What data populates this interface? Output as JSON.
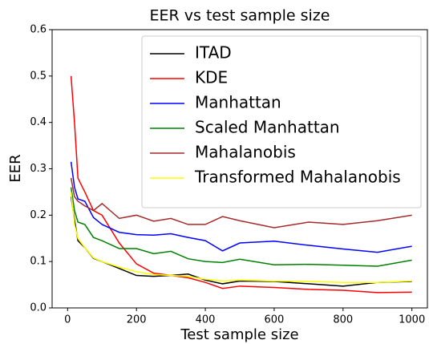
{
  "chart_data": {
    "type": "line",
    "title": "EER vs test sample size",
    "x_label": "Test sample size",
    "y_label": "EER",
    "x": [
      10,
      20,
      30,
      50,
      75,
      100,
      150,
      200,
      250,
      300,
      350,
      400,
      450,
      500,
      600,
      700,
      800,
      900,
      1000
    ],
    "series": [
      {
        "name": "ITAD",
        "color": "#000000",
        "values": [
          0.24,
          0.19,
          0.145,
          0.13,
          0.107,
          0.1,
          0.085,
          0.07,
          0.068,
          0.07,
          0.073,
          0.06,
          0.052,
          0.058,
          0.057,
          0.052,
          0.047,
          0.055,
          0.057
        ]
      },
      {
        "name": "KDE",
        "color": "#ff0000",
        "values": [
          0.5,
          0.4,
          0.28,
          0.25,
          0.21,
          0.2,
          0.14,
          0.095,
          0.075,
          0.07,
          0.065,
          0.055,
          0.042,
          0.047,
          0.044,
          0.04,
          0.038,
          0.033,
          0.034
        ]
      },
      {
        "name": "Manhattan",
        "color": "#0000ff",
        "values": [
          0.315,
          0.26,
          0.235,
          0.23,
          0.195,
          0.18,
          0.163,
          0.158,
          0.157,
          0.16,
          0.152,
          0.145,
          0.123,
          0.14,
          0.144,
          0.135,
          0.127,
          0.12,
          0.133
        ]
      },
      {
        "name": "Scaled Manhattan",
        "color": "#008000",
        "values": [
          0.26,
          0.21,
          0.185,
          0.18,
          0.152,
          0.145,
          0.128,
          0.128,
          0.117,
          0.122,
          0.106,
          0.1,
          0.098,
          0.105,
          0.093,
          0.094,
          0.092,
          0.09,
          0.103
        ]
      },
      {
        "name": "Mahalanobis",
        "color": "#a52a2a",
        "values": [
          0.28,
          0.24,
          0.23,
          0.22,
          0.21,
          0.225,
          0.193,
          0.2,
          0.187,
          0.193,
          0.18,
          0.18,
          0.197,
          0.188,
          0.173,
          0.185,
          0.18,
          0.188,
          0.2
        ]
      },
      {
        "name": "Transformed Mahalanobis",
        "color": "#ffff00",
        "values": [
          0.25,
          0.18,
          0.15,
          0.13,
          0.108,
          0.1,
          0.088,
          0.078,
          0.072,
          0.07,
          0.068,
          0.062,
          0.058,
          0.06,
          0.058,
          0.057,
          0.055,
          0.055,
          0.058
        ]
      }
    ],
    "xlim": [
      -45,
      1045
    ],
    "xticks": [
      0,
      200,
      400,
      600,
      800,
      1000
    ],
    "ylim": [
      0,
      0.6
    ],
    "yticks": [
      {
        "value": 0,
        "label": "0.0"
      },
      0.1,
      0.2,
      0.3,
      0.4,
      0.5,
      0.6
    ],
    "grid": false,
    "legend": "upper right"
  }
}
